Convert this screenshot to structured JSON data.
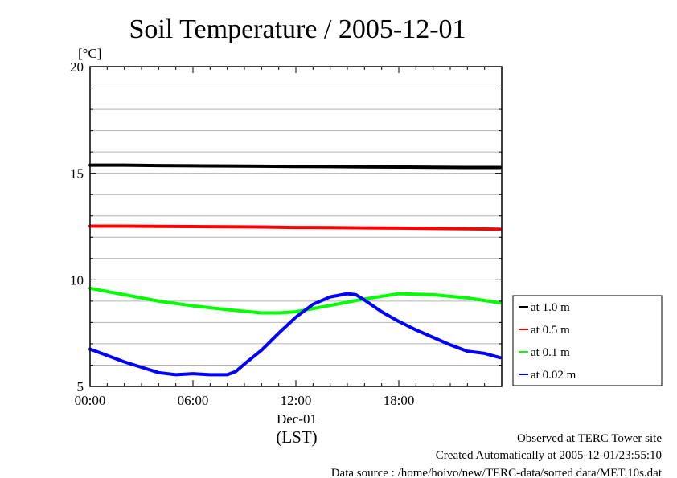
{
  "chart_data": {
    "type": "line",
    "title": "Soil Temperature / 2005-12-01",
    "ylabel": "[°C]",
    "ylim": [
      5,
      20
    ],
    "yticks": [
      "5",
      "10",
      "15",
      "20"
    ],
    "xlim": [
      0,
      24
    ],
    "xticks": [
      {
        "label": "00:00",
        "value": 0
      },
      {
        "label": "06:00",
        "value": 6
      },
      {
        "label": "12:00",
        "value": 12
      },
      {
        "label": "18:00",
        "value": 18
      }
    ],
    "xdate_label": "Dec-01",
    "xunit_label": "(LST)",
    "grid": true,
    "legend_position": "right",
    "series": [
      {
        "name": "at 1.0 m",
        "color": "#000000",
        "x": [
          0,
          2,
          4,
          6,
          8,
          10,
          12,
          14,
          16,
          18,
          20,
          22,
          23.9
        ],
        "y": [
          15.38,
          15.38,
          15.36,
          15.35,
          15.34,
          15.33,
          15.32,
          15.31,
          15.3,
          15.29,
          15.28,
          15.27,
          15.27
        ]
      },
      {
        "name": "at 0.5 m",
        "color": "#ff0000",
        "x": [
          0,
          2,
          4,
          6,
          8,
          10,
          12,
          14,
          16,
          18,
          20,
          22,
          23.9
        ],
        "y": [
          12.52,
          12.52,
          12.51,
          12.5,
          12.49,
          12.48,
          12.46,
          12.45,
          12.44,
          12.43,
          12.41,
          12.4,
          12.38
        ]
      },
      {
        "name": "at 0.1 m",
        "color": "#00ff00",
        "x": [
          0,
          2,
          4,
          6,
          8,
          10,
          11,
          12,
          14,
          16,
          18,
          20,
          22,
          23.9
        ],
        "y": [
          9.6,
          9.3,
          9.0,
          8.78,
          8.6,
          8.45,
          8.45,
          8.5,
          8.8,
          9.1,
          9.35,
          9.3,
          9.15,
          8.92
        ]
      },
      {
        "name": "at 0.02 m",
        "color": "#0000ff",
        "x": [
          0,
          1,
          2,
          3,
          4,
          5,
          6,
          7,
          8,
          8.5,
          9,
          10,
          11,
          12,
          13,
          14,
          15,
          15.5,
          16,
          17,
          18,
          19,
          20,
          21,
          22,
          23,
          23.9
        ],
        "y": [
          6.75,
          6.45,
          6.15,
          5.9,
          5.65,
          5.55,
          5.6,
          5.55,
          5.55,
          5.7,
          6.05,
          6.7,
          7.5,
          8.25,
          8.85,
          9.2,
          9.35,
          9.3,
          9.05,
          8.5,
          8.05,
          7.65,
          7.3,
          6.95,
          6.65,
          6.55,
          6.35
        ]
      }
    ]
  },
  "footer": {
    "site": "Observed at TERC Tower site",
    "created": "Created Automatically at 2005-12-01/23:55:10",
    "source": "Data source : /home/hoivo/new/TERC-data/sorted  data/MET.10s.dat"
  }
}
